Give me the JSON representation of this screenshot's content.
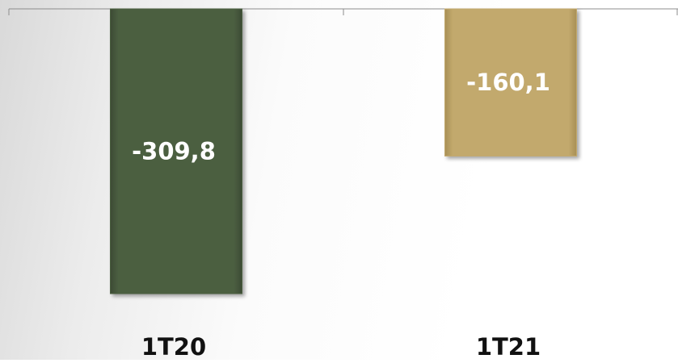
{
  "chart_data": {
    "type": "bar",
    "categories": [
      "1T20",
      "1T21"
    ],
    "values": [
      -309.8,
      -160.1
    ],
    "data_labels": [
      "-309,8",
      "-160,1"
    ],
    "colors": [
      "#4b5e41",
      "#c2a96d"
    ],
    "title": "",
    "xlabel": "",
    "ylabel": "",
    "ylim": [
      -309.8,
      0
    ],
    "grid": false,
    "legend": "none"
  }
}
